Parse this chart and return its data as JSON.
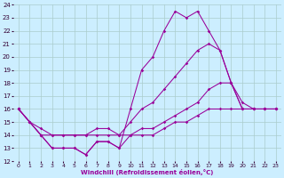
{
  "xlabel": "Windchill (Refroidissement éolien,°C)",
  "bg_color": "#cceeff",
  "grid_color": "#aacccc",
  "line_color": "#990099",
  "ylim": [
    12,
    24
  ],
  "xlim": [
    -0.5,
    23.5
  ],
  "yticks": [
    12,
    13,
    14,
    15,
    16,
    17,
    18,
    19,
    20,
    21,
    22,
    23,
    24
  ],
  "xticks": [
    0,
    1,
    2,
    3,
    4,
    5,
    6,
    7,
    8,
    9,
    10,
    11,
    12,
    13,
    14,
    15,
    16,
    17,
    18,
    19,
    20,
    21,
    22,
    23
  ],
  "line1_x": [
    0,
    1,
    2,
    3,
    4,
    5,
    6,
    7,
    8,
    9,
    10,
    11,
    12,
    13,
    14,
    15,
    16,
    17,
    18,
    19,
    20,
    21,
    22,
    23
  ],
  "line1_y": [
    16,
    15,
    14,
    13,
    13,
    13,
    12.5,
    13.5,
    13.5,
    13,
    16,
    19,
    20,
    22,
    23.5,
    23,
    23.5,
    22,
    20.5,
    18,
    16,
    16,
    16,
    16
  ],
  "line2_x": [
    0,
    1,
    2,
    3,
    4,
    5,
    6,
    7,
    8,
    9,
    10,
    11,
    12,
    13,
    14,
    15,
    16,
    17,
    18,
    19,
    20,
    21,
    22,
    23
  ],
  "line2_y": [
    16,
    15,
    14.5,
    14,
    14,
    14,
    14,
    14,
    14,
    14,
    15,
    16,
    16.5,
    17.5,
    18.5,
    19.5,
    20.5,
    21,
    20.5,
    18,
    16.5,
    16,
    16,
    16
  ],
  "line3_x": [
    0,
    1,
    2,
    3,
    4,
    5,
    6,
    7,
    8,
    9,
    10,
    11,
    12,
    13,
    14,
    15,
    16,
    17,
    18,
    19,
    20,
    21,
    22,
    23
  ],
  "line3_y": [
    16,
    15,
    14,
    14,
    14,
    14,
    14,
    14.5,
    14.5,
    14,
    14,
    14.5,
    14.5,
    15,
    15.5,
    16,
    16.5,
    17.5,
    18,
    18,
    16,
    16,
    16,
    16
  ],
  "line4_x": [
    0,
    1,
    2,
    3,
    4,
    5,
    6,
    7,
    8,
    9,
    10,
    11,
    12,
    13,
    14,
    15,
    16,
    17,
    18,
    19,
    20,
    21,
    22,
    23
  ],
  "line4_y": [
    16,
    15,
    14,
    13,
    13,
    13,
    12.5,
    13.5,
    13.5,
    13,
    14,
    14,
    14,
    14.5,
    15,
    15,
    15.5,
    16,
    16,
    16,
    16,
    16,
    16,
    16
  ]
}
